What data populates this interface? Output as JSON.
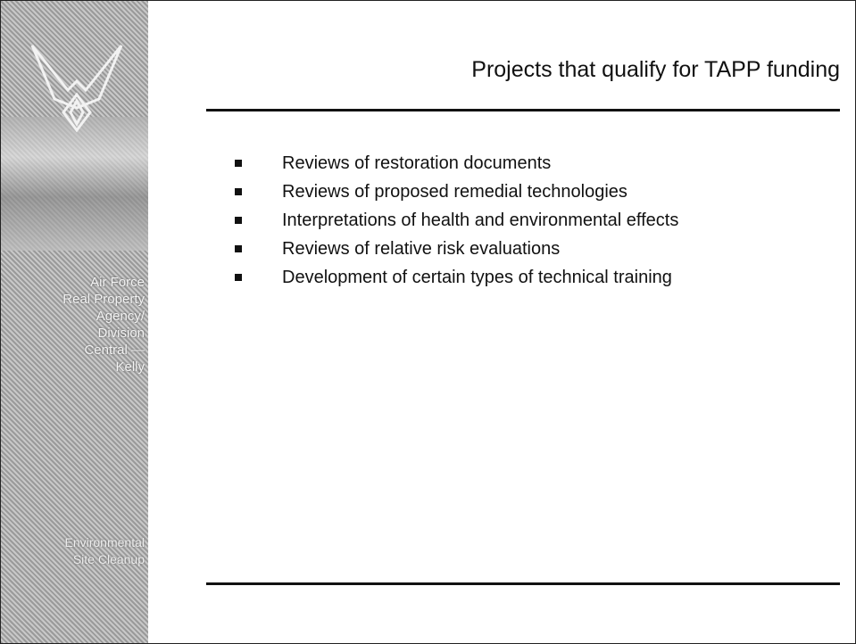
{
  "sidebar": {
    "organization": [
      "Air Force",
      "Real Property",
      "Agency/",
      "Division",
      "Central —",
      "Kelly"
    ],
    "program": [
      "Environmental",
      "Site Cleanup"
    ]
  },
  "slide": {
    "title": "Projects that qualify for TAPP funding",
    "bullets": [
      "Reviews of restoration documents",
      "Reviews of proposed remedial technologies",
      "Interpretations of health and environmental effects",
      "Reviews of relative risk evaluations",
      "Development of certain types of technical training"
    ]
  }
}
